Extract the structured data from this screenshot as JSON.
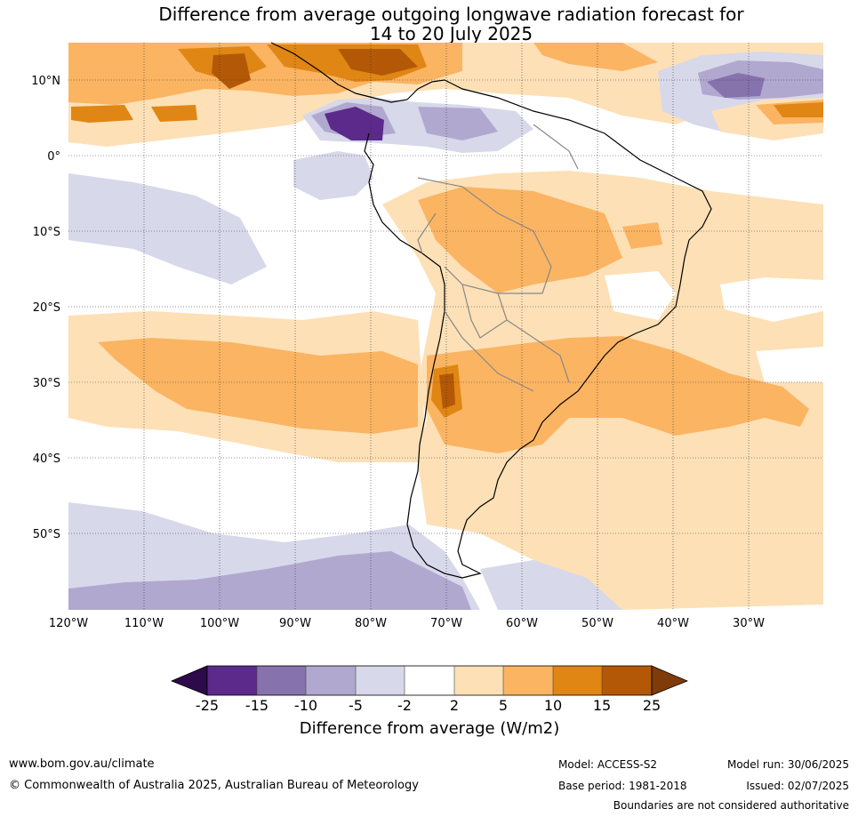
{
  "title": {
    "line1": "Difference from average outgoing longwave radiation forecast for",
    "line2": "14 to 20 July 2025"
  },
  "map": {
    "lat_labels": [
      "10°N",
      "0°",
      "10°S",
      "20°S",
      "30°S",
      "40°S",
      "50°S"
    ],
    "lon_labels": [
      "120°W",
      "110°W",
      "100°W",
      "90°W",
      "80°W",
      "70°W",
      "60°W",
      "50°W",
      "40°W",
      "30°W"
    ]
  },
  "colorbar": {
    "tick_labels": [
      "-25",
      "-15",
      "-10",
      "-5",
      "-2",
      "2",
      "5",
      "10",
      "15",
      "25"
    ],
    "colors": [
      "#2d0a4a",
      "#5b2a8a",
      "#8672ad",
      "#b1a8d0",
      "#d7d8ea",
      "#ffffff",
      "#fde0b6",
      "#fbb462",
      "#e08614",
      "#b35806",
      "#7f3b08"
    ],
    "label": "Difference from average (W/m2)"
  },
  "footer": {
    "url": "www.bom.gov.au/climate",
    "copyright": "© Commonwealth of Australia 2025, Australian Bureau of Meteorology",
    "model": "Model: ACCESS-S2",
    "base_period": "Base period: 1981-2018",
    "model_run": "Model run: 30/06/2025",
    "issued": "Issued: 02/07/2025",
    "disclaimer": "Boundaries are not considered authoritative"
  }
}
